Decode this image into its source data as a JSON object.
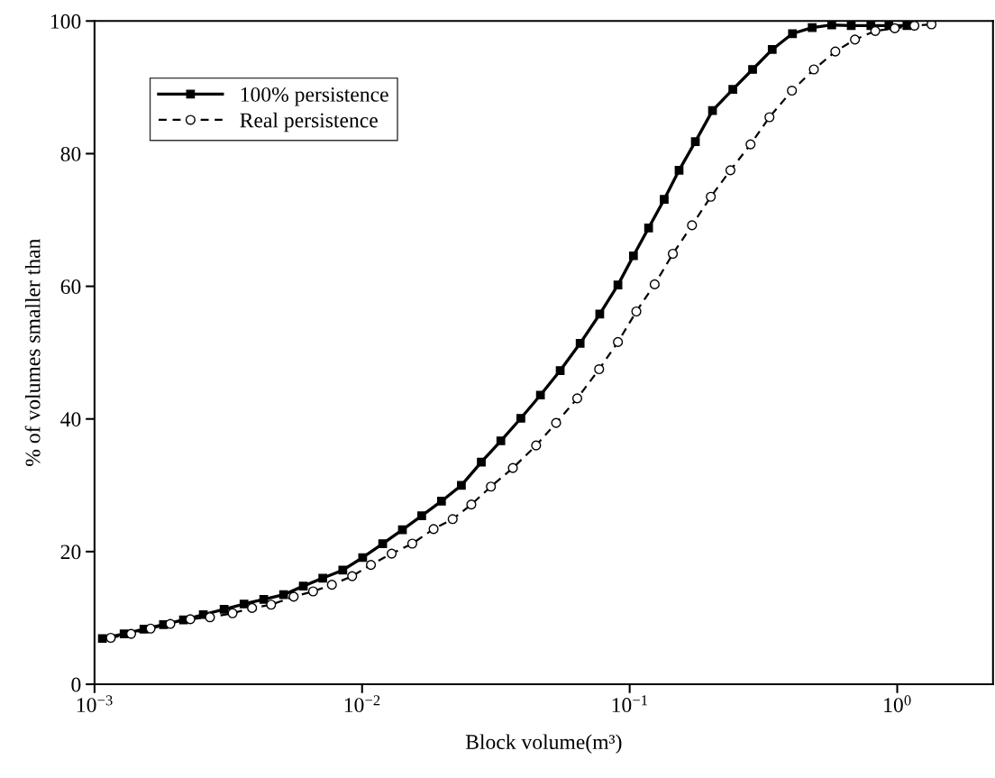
{
  "chart_data": {
    "type": "line",
    "xlabel": "Block volume(m³)",
    "ylabel": "% of volumes smaller than",
    "log": "x",
    "xlim": [
      0.001,
      2.28
    ],
    "ylim": [
      0,
      100
    ],
    "xticks": [
      {
        "value": 0.001,
        "label": "10$^{−3}$"
      },
      {
        "value": 0.01,
        "label": "10$^{−2}$"
      },
      {
        "value": 0.1,
        "label": "10$^{−1}$"
      },
      {
        "value": 1,
        "label": "10$^{0}$"
      }
    ],
    "yticks": [
      0,
      20,
      40,
      60,
      80,
      100
    ],
    "grid": false,
    "legend": "top left",
    "series": [
      {
        "name": "100% persistence",
        "color": "#000000",
        "marker": "square",
        "line_style": "solid",
        "x": [
          0.00107,
          0.00129,
          0.00153,
          0.00181,
          0.00215,
          0.00255,
          0.00305,
          0.00362,
          0.00429,
          0.00509,
          0.00603,
          0.00713,
          0.00847,
          0.01005,
          0.01194,
          0.01415,
          0.0167,
          0.0198,
          0.0235,
          0.0279,
          0.033,
          0.0392,
          0.0464,
          0.055,
          0.0653,
          0.0773,
          0.0904,
          0.1033,
          0.1177,
          0.1346,
          0.153,
          0.176,
          0.204,
          0.243,
          0.288,
          0.341,
          0.406,
          0.481,
          0.569,
          0.673,
          0.797,
          0.931,
          1.087
        ],
        "values": [
          6.9,
          7.6,
          8.3,
          9.0,
          9.7,
          10.5,
          11.3,
          12.1,
          12.8,
          13.5,
          14.8,
          16.0,
          17.2,
          19.1,
          21.2,
          23.3,
          25.4,
          27.6,
          30.0,
          33.5,
          36.7,
          40.1,
          43.6,
          47.3,
          51.4,
          55.8,
          60.2,
          64.6,
          68.8,
          73.1,
          77.5,
          81.8,
          86.5,
          89.7,
          92.7,
          95.7,
          98.1,
          99.0,
          99.4,
          99.3,
          99.3,
          99.3,
          99.3
        ]
      },
      {
        "name": "Real persistence",
        "color": "#000000",
        "marker": "circle",
        "line_style": "dashed",
        "x": [
          0.00115,
          0.00137,
          0.00162,
          0.00192,
          0.00228,
          0.0027,
          0.00328,
          0.00388,
          0.00457,
          0.00555,
          0.00656,
          0.00771,
          0.00918,
          0.01079,
          0.0129,
          0.0154,
          0.0185,
          0.0218,
          0.0256,
          0.0303,
          0.0366,
          0.0447,
          0.0531,
          0.0637,
          0.0769,
          0.0904,
          0.1059,
          0.124,
          0.145,
          0.171,
          0.201,
          0.238,
          0.283,
          0.333,
          0.404,
          0.488,
          0.587,
          0.695,
          0.828,
          0.979,
          1.159,
          1.343
        ],
        "values": [
          7.0,
          7.6,
          8.4,
          9.1,
          9.8,
          10.1,
          10.7,
          11.5,
          12.0,
          13.2,
          14.0,
          15.0,
          16.3,
          18.0,
          19.7,
          21.2,
          23.4,
          24.9,
          27.1,
          29.8,
          32.6,
          36.0,
          39.4,
          43.1,
          47.5,
          51.6,
          56.2,
          60.3,
          64.9,
          69.2,
          73.5,
          77.5,
          81.4,
          85.5,
          89.5,
          92.7,
          95.4,
          97.2,
          98.5,
          98.9,
          99.3,
          99.5
        ]
      }
    ]
  }
}
